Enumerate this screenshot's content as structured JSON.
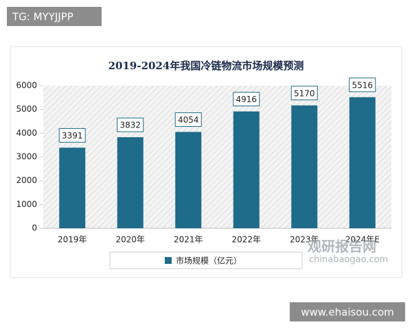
{
  "tag": "TG: MYYJJPP",
  "watermark": {
    "name": "观研报告网",
    "url": "chinabaogao.com"
  },
  "footer": "www.ehaisou.com",
  "chart_data": {
    "type": "bar",
    "title": "2019-2024年我国冷链物流市场规模预测",
    "categories": [
      "2019年",
      "2020年",
      "2021年",
      "2022年",
      "2023年",
      "2024年E"
    ],
    "series": [
      {
        "name": "市场规模（亿元）",
        "color": "#1f6b8a",
        "values": [
          3391,
          3832,
          4054,
          4916,
          5170,
          5516
        ]
      }
    ],
    "ylim": [
      0,
      6000
    ],
    "yticks": [
      0,
      1000,
      2000,
      3000,
      4000,
      5000,
      6000
    ],
    "legend": "bottom"
  }
}
